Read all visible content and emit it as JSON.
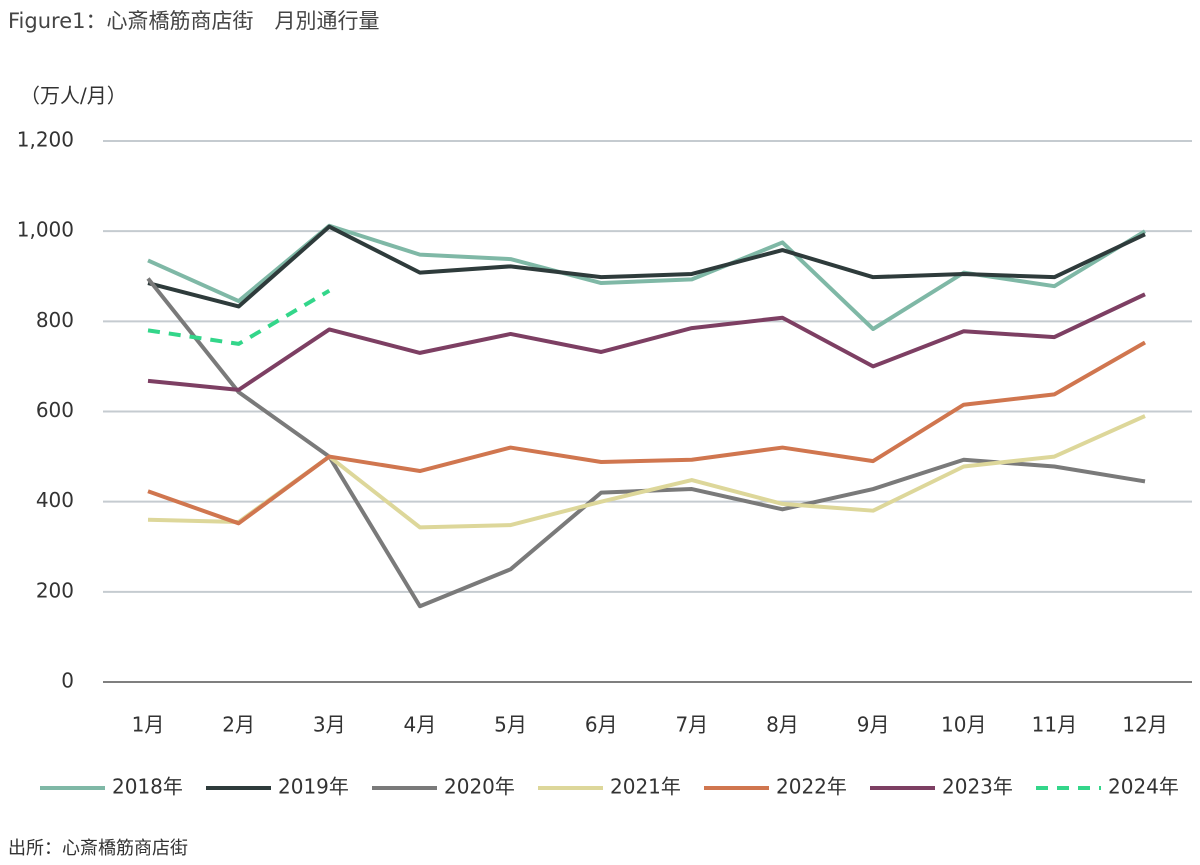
{
  "chart_data": {
    "type": "line",
    "title": "Figure1：心斎橋筋商店街　月別通行量",
    "y_label": "（万人/月）",
    "source": "出所：心斎橋筋商店街",
    "categories": [
      "1月",
      "2月",
      "3月",
      "4月",
      "5月",
      "6月",
      "7月",
      "8月",
      "9月",
      "10月",
      "11月",
      "12月"
    ],
    "ylim": [
      0,
      1200
    ],
    "yticks": [
      0,
      200,
      400,
      600,
      800,
      {
        "value": 1000,
        "label": "1,000"
      },
      {
        "value": 1200,
        "label": "1,200"
      }
    ],
    "grid": true,
    "legend": "bottom",
    "series": [
      {
        "name": "2018年",
        "color": "#7fb8a6",
        "values": [
          935,
          845,
          1012,
          948,
          938,
          885,
          893,
          975,
          783,
          908,
          878,
          1000
        ]
      },
      {
        "name": "2019年",
        "color": "#2e3b3b",
        "values": [
          885,
          833,
          1010,
          908,
          922,
          898,
          905,
          958,
          898,
          905,
          898,
          993
        ]
      },
      {
        "name": "2020年",
        "color": "#7a7a7a",
        "values": [
          895,
          643,
          500,
          168,
          250,
          420,
          428,
          383,
          428,
          493,
          478,
          445
        ]
      },
      {
        "name": "2021年",
        "color": "#ddd79a",
        "values": [
          360,
          355,
          500,
          343,
          348,
          400,
          448,
          395,
          380,
          478,
          500,
          590
        ]
      },
      {
        "name": "2022年",
        "color": "#d0764f",
        "values": [
          423,
          352,
          500,
          468,
          520,
          488,
          493,
          520,
          490,
          615,
          638,
          753
        ]
      },
      {
        "name": "2023年",
        "color": "#7d3f63",
        "values": [
          668,
          648,
          782,
          730,
          772,
          732,
          785,
          808,
          700,
          778,
          765,
          860
        ]
      },
      {
        "name": "2024年",
        "color": "#33d68a",
        "style": "dashed",
        "values": [
          780,
          750,
          868,
          null,
          null,
          null,
          null,
          null,
          null,
          null,
          null,
          null
        ]
      }
    ]
  }
}
